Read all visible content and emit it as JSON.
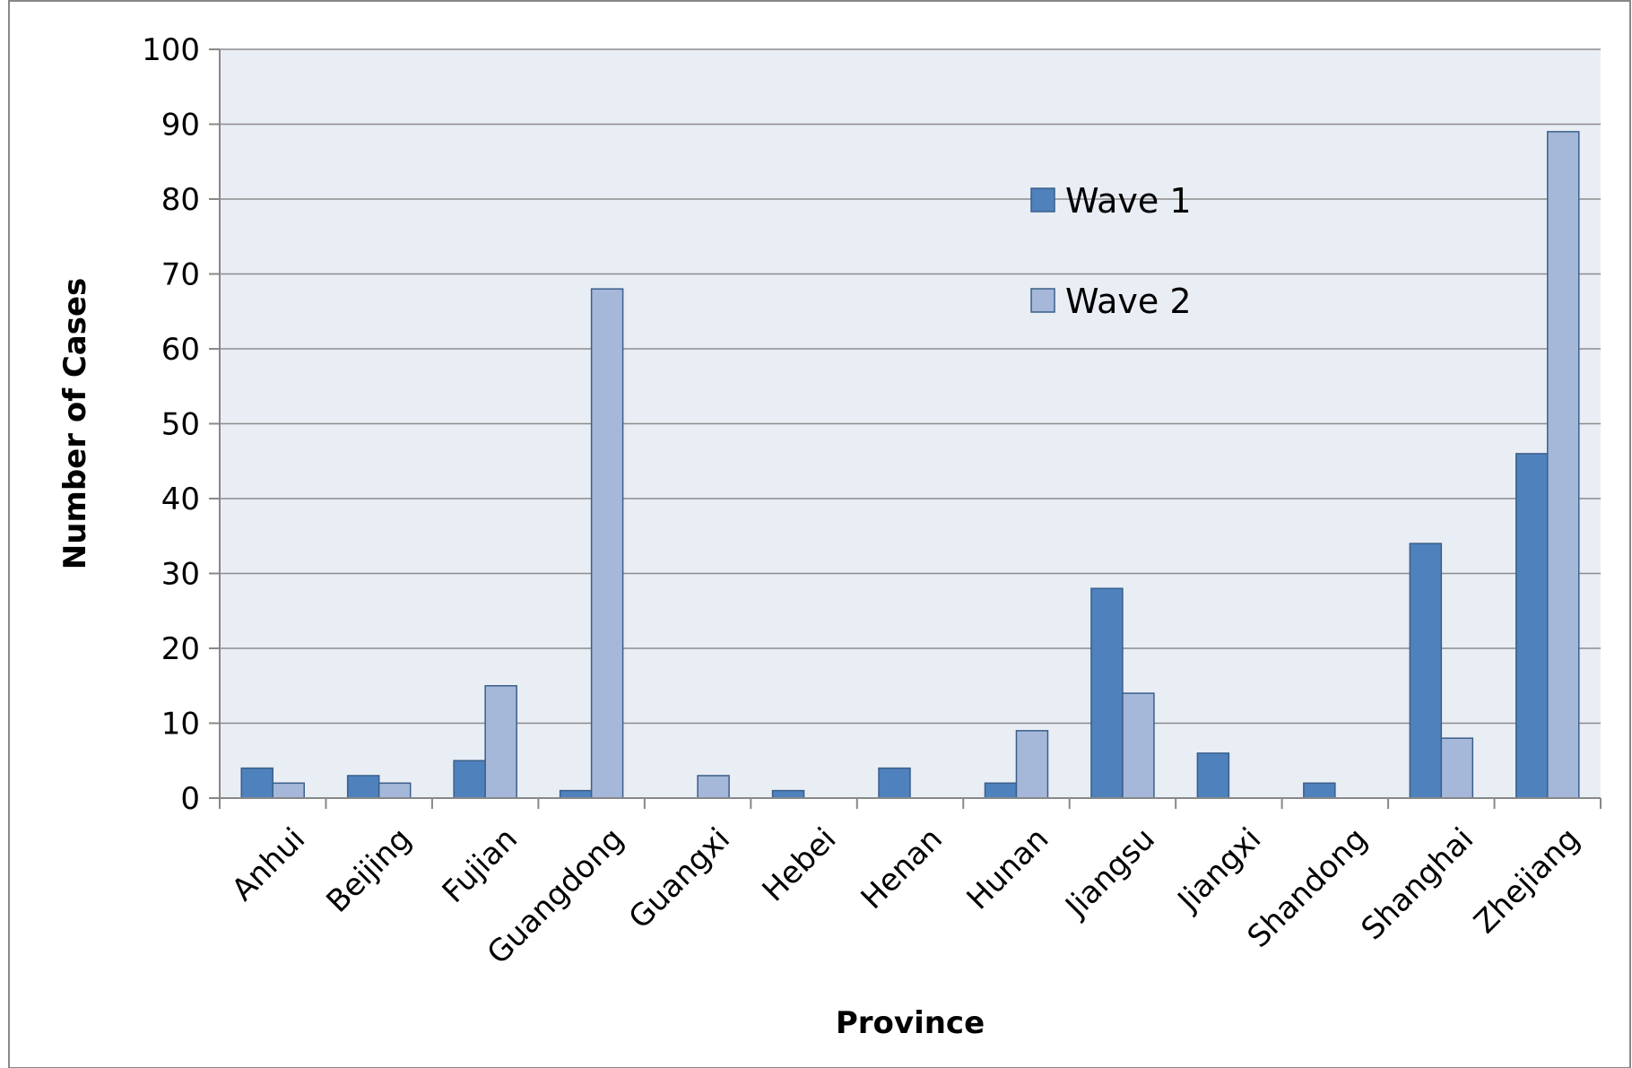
{
  "chart_data": {
    "type": "bar",
    "title": "",
    "xlabel": "Province",
    "ylabel": "Number of Cases",
    "ylim": [
      0,
      100
    ],
    "yticks": [
      0,
      10,
      20,
      30,
      40,
      50,
      60,
      70,
      80,
      90,
      100
    ],
    "grid": true,
    "legend_position": "top-right",
    "categories": [
      "Anhui",
      "Beijing",
      "Fujian",
      "Guangdong",
      "Guangxi",
      "Hebei",
      "Henan",
      "Hunan",
      "Jiangsu",
      "Jiangxi",
      "Shandong",
      "Shanghai",
      "Zhejiang"
    ],
    "series": [
      {
        "name": "Wave 1",
        "color": "#4f81bd",
        "values": [
          4,
          3,
          5,
          1,
          0,
          1,
          4,
          2,
          28,
          6,
          2,
          34,
          46
        ]
      },
      {
        "name": "Wave 2",
        "color": "#a5b8da",
        "values": [
          2,
          2,
          15,
          68,
          3,
          0,
          0,
          9,
          14,
          0,
          0,
          8,
          89
        ]
      }
    ]
  },
  "colors": {
    "plot_background": "#e9edf4",
    "gridline": "#8c8c8c",
    "bar_stroke": "#3a5f8a"
  }
}
